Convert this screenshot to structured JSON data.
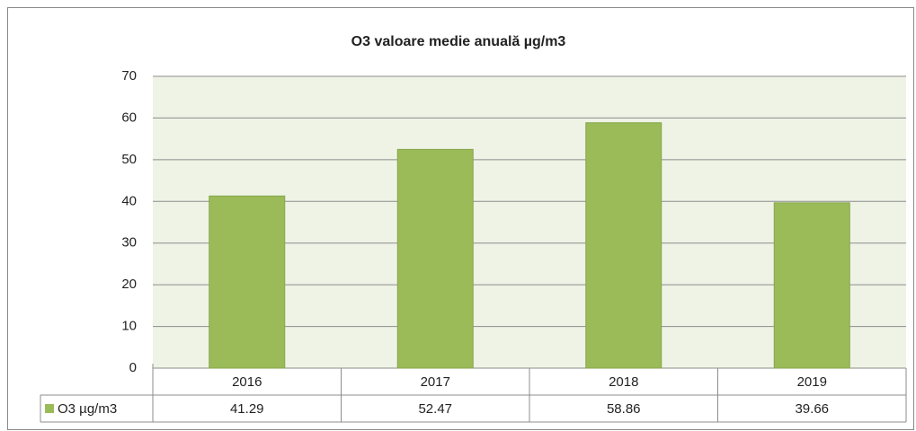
{
  "chart_data": {
    "type": "bar",
    "title": "O3 valoare medie anuală µg/m3",
    "categories": [
      "2016",
      "2017",
      "2018",
      "2019"
    ],
    "series": [
      {
        "name": "O3 µg/m3",
        "color": "#9bbb59",
        "values": [
          41.29,
          52.47,
          58.86,
          39.66
        ]
      }
    ],
    "ylim": [
      0,
      70
    ],
    "yticks": [
      0,
      10,
      20,
      30,
      40,
      50,
      60,
      70
    ],
    "grid": true
  }
}
